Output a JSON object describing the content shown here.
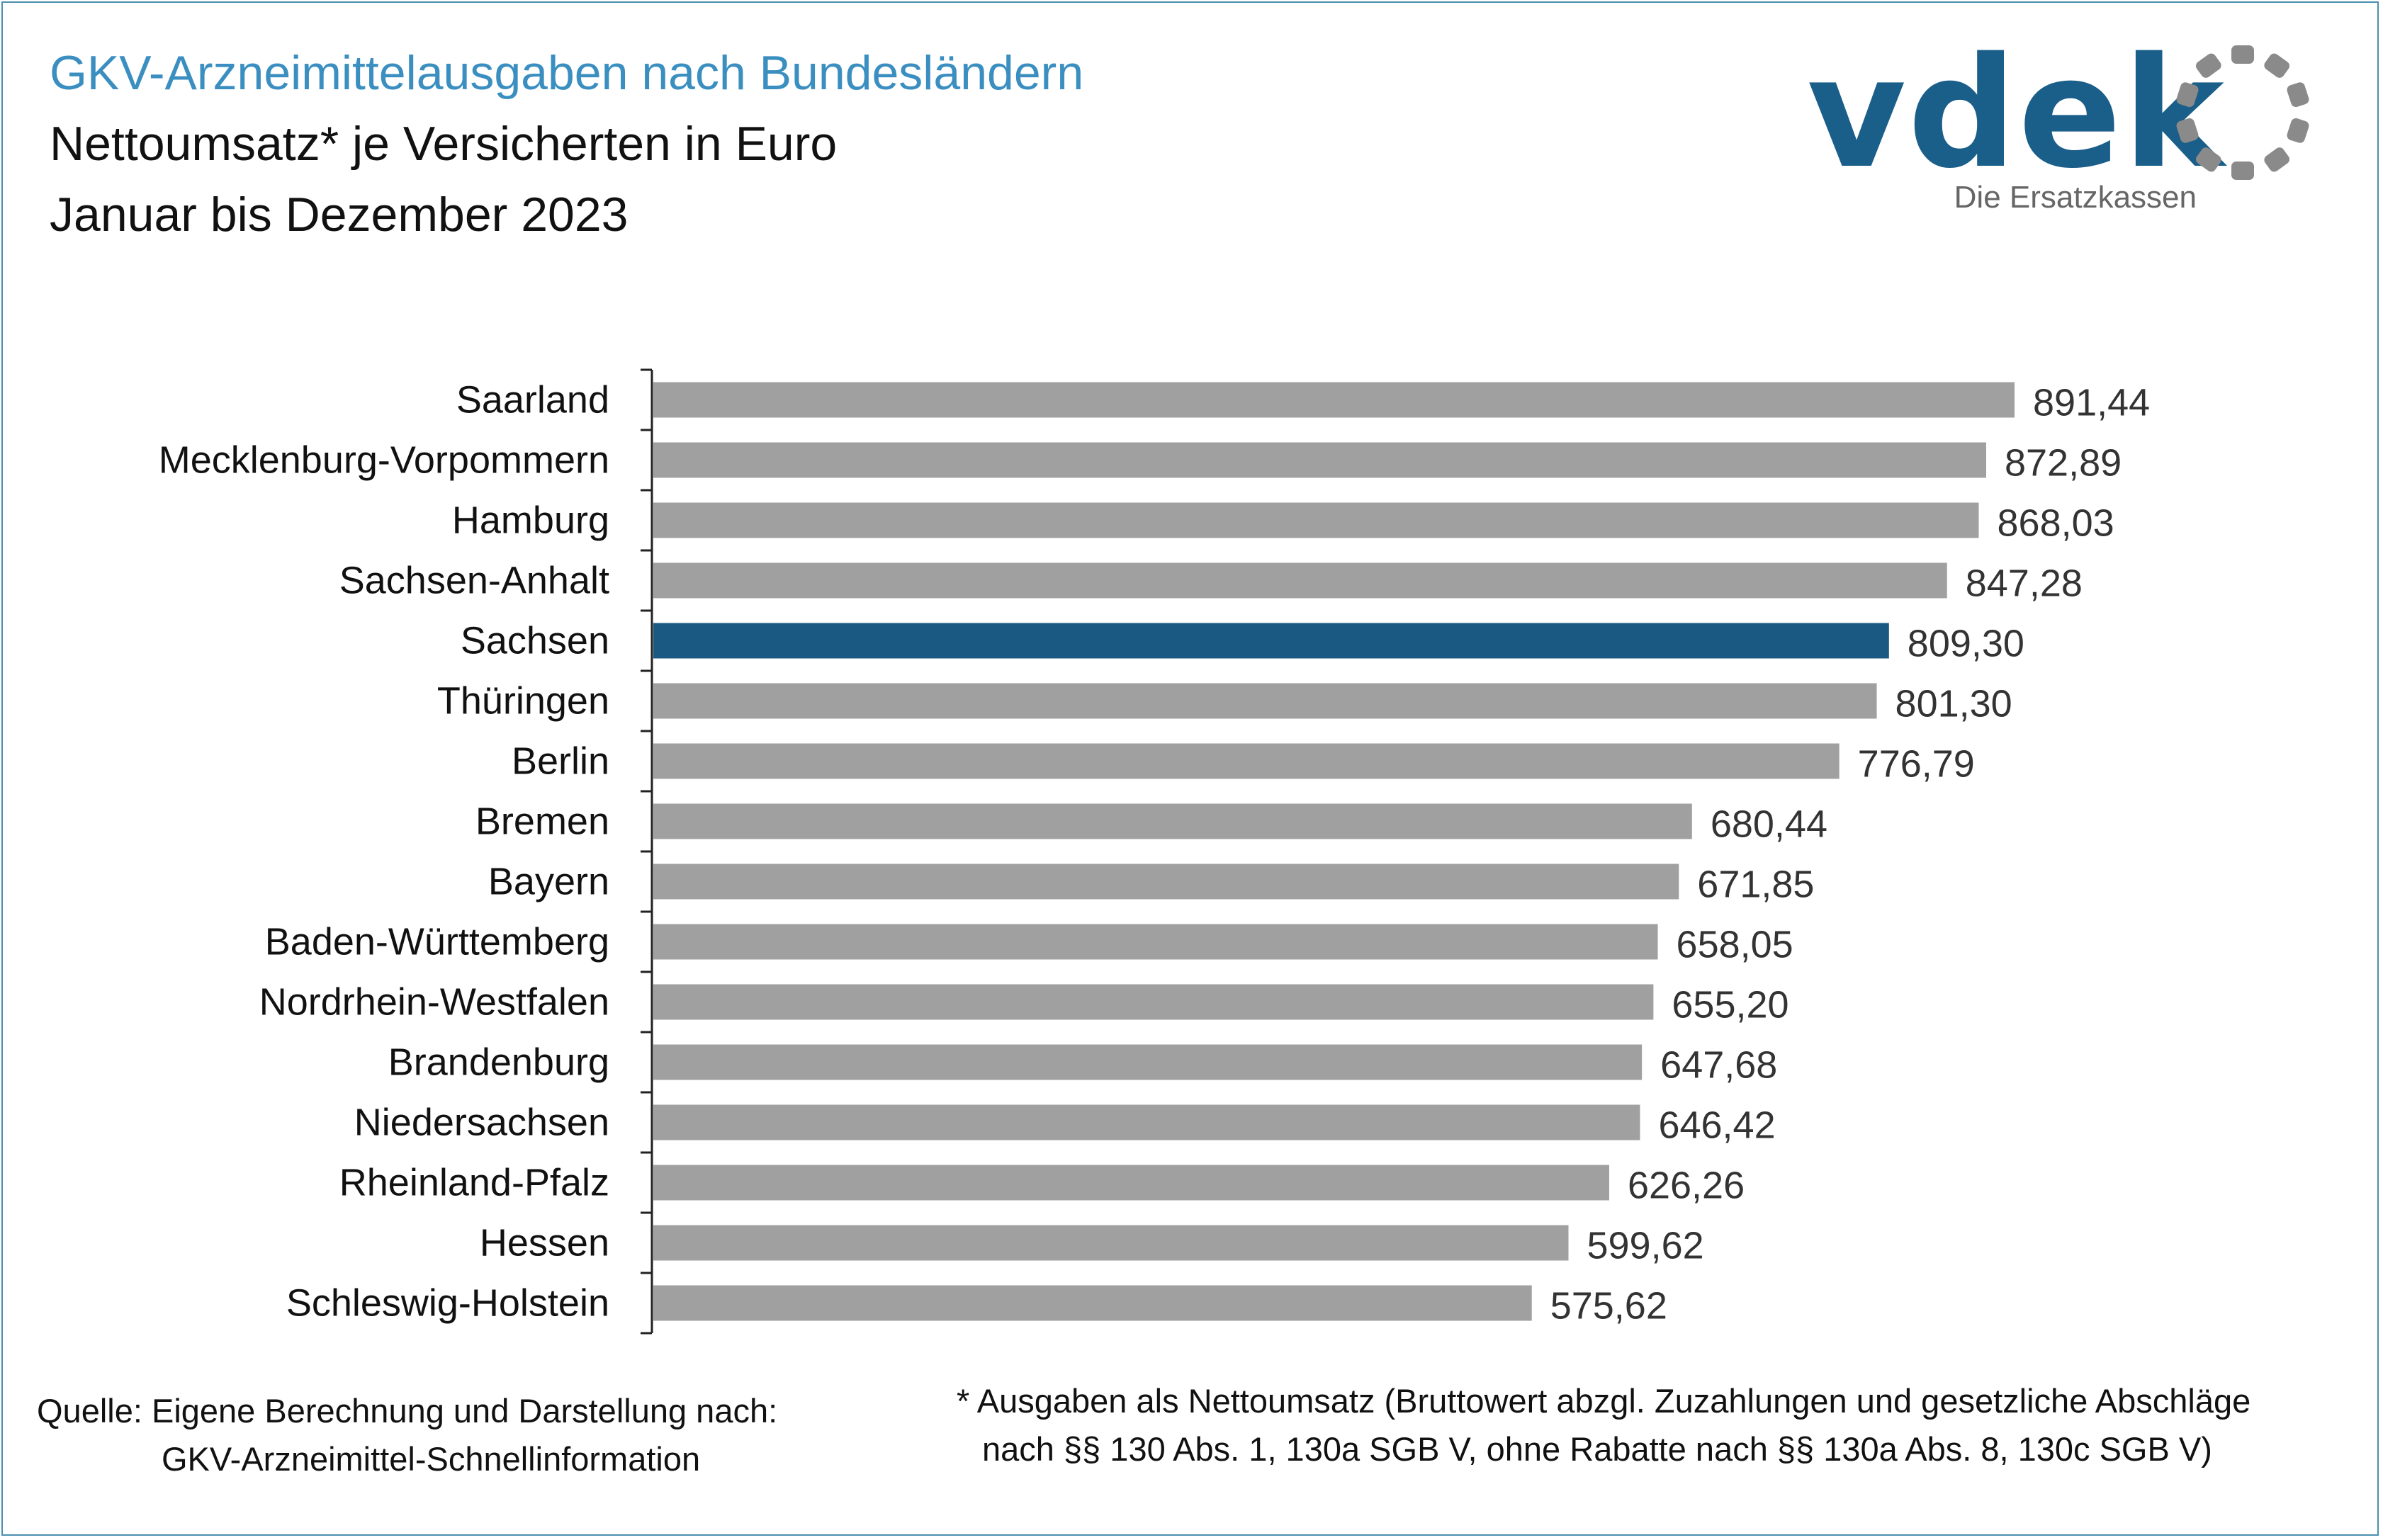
{
  "header": {
    "title": "GKV-Arzneimittelausgaben nach Bundesländern",
    "subtitle": "Nettoumsatz* je Versicherten in Euro",
    "period": "Januar bis Dezember 2023"
  },
  "logo": {
    "wordmark": "vdek",
    "tagline": "Die Ersatzkassen",
    "brand_color": "#1a5e8a",
    "ring_color": "#8a8a8a"
  },
  "chart_data": {
    "type": "bar",
    "orientation": "horizontal",
    "title": "",
    "xlabel": "",
    "ylabel": "",
    "categories": [
      "Saarland",
      "Mecklenburg-Vorpommern",
      "Hamburg",
      "Sachsen-Anhalt",
      "Sachsen",
      "Thüringen",
      "Berlin",
      "Bremen",
      "Bayern",
      "Baden-Württemberg",
      "Nordrhein-Westfalen",
      "Brandenburg",
      "Niedersachsen",
      "Rheinland-Pfalz",
      "Hessen",
      "Schleswig-Holstein"
    ],
    "values": [
      891.44,
      872.89,
      868.03,
      847.28,
      809.3,
      801.3,
      776.79,
      680.44,
      671.85,
      658.05,
      655.2,
      647.68,
      646.42,
      626.26,
      599.62,
      575.62
    ],
    "value_labels": [
      "891,44",
      "872,89",
      "868,03",
      "847,28",
      "809,30",
      "801,30",
      "776,79",
      "680,44",
      "671,85",
      "658,05",
      "655,20",
      "647,68",
      "646,42",
      "626,26",
      "599,62",
      "575,62"
    ],
    "highlight": "Sachsen",
    "bar_color": "#a0a0a0",
    "highlight_color": "#1a5a82",
    "xlim": [
      0,
      1000
    ],
    "grid": false,
    "legend": "none"
  },
  "footer": {
    "source_line1": "Quelle: Eigene Berechnung und Darstellung nach:",
    "source_line2": "GKV-Arzneimittel-Schnellinformation",
    "footnote_line1": "* Ausgaben als Nettoumsatz (Bruttowert abzgl. Zuzahlungen und gesetzliche Abschläge",
    "footnote_line2": "nach §§ 130 Abs. 1, 130a SGB V, ohne Rabatte nach §§ 130a Abs. 8, 130c SGB V)"
  }
}
